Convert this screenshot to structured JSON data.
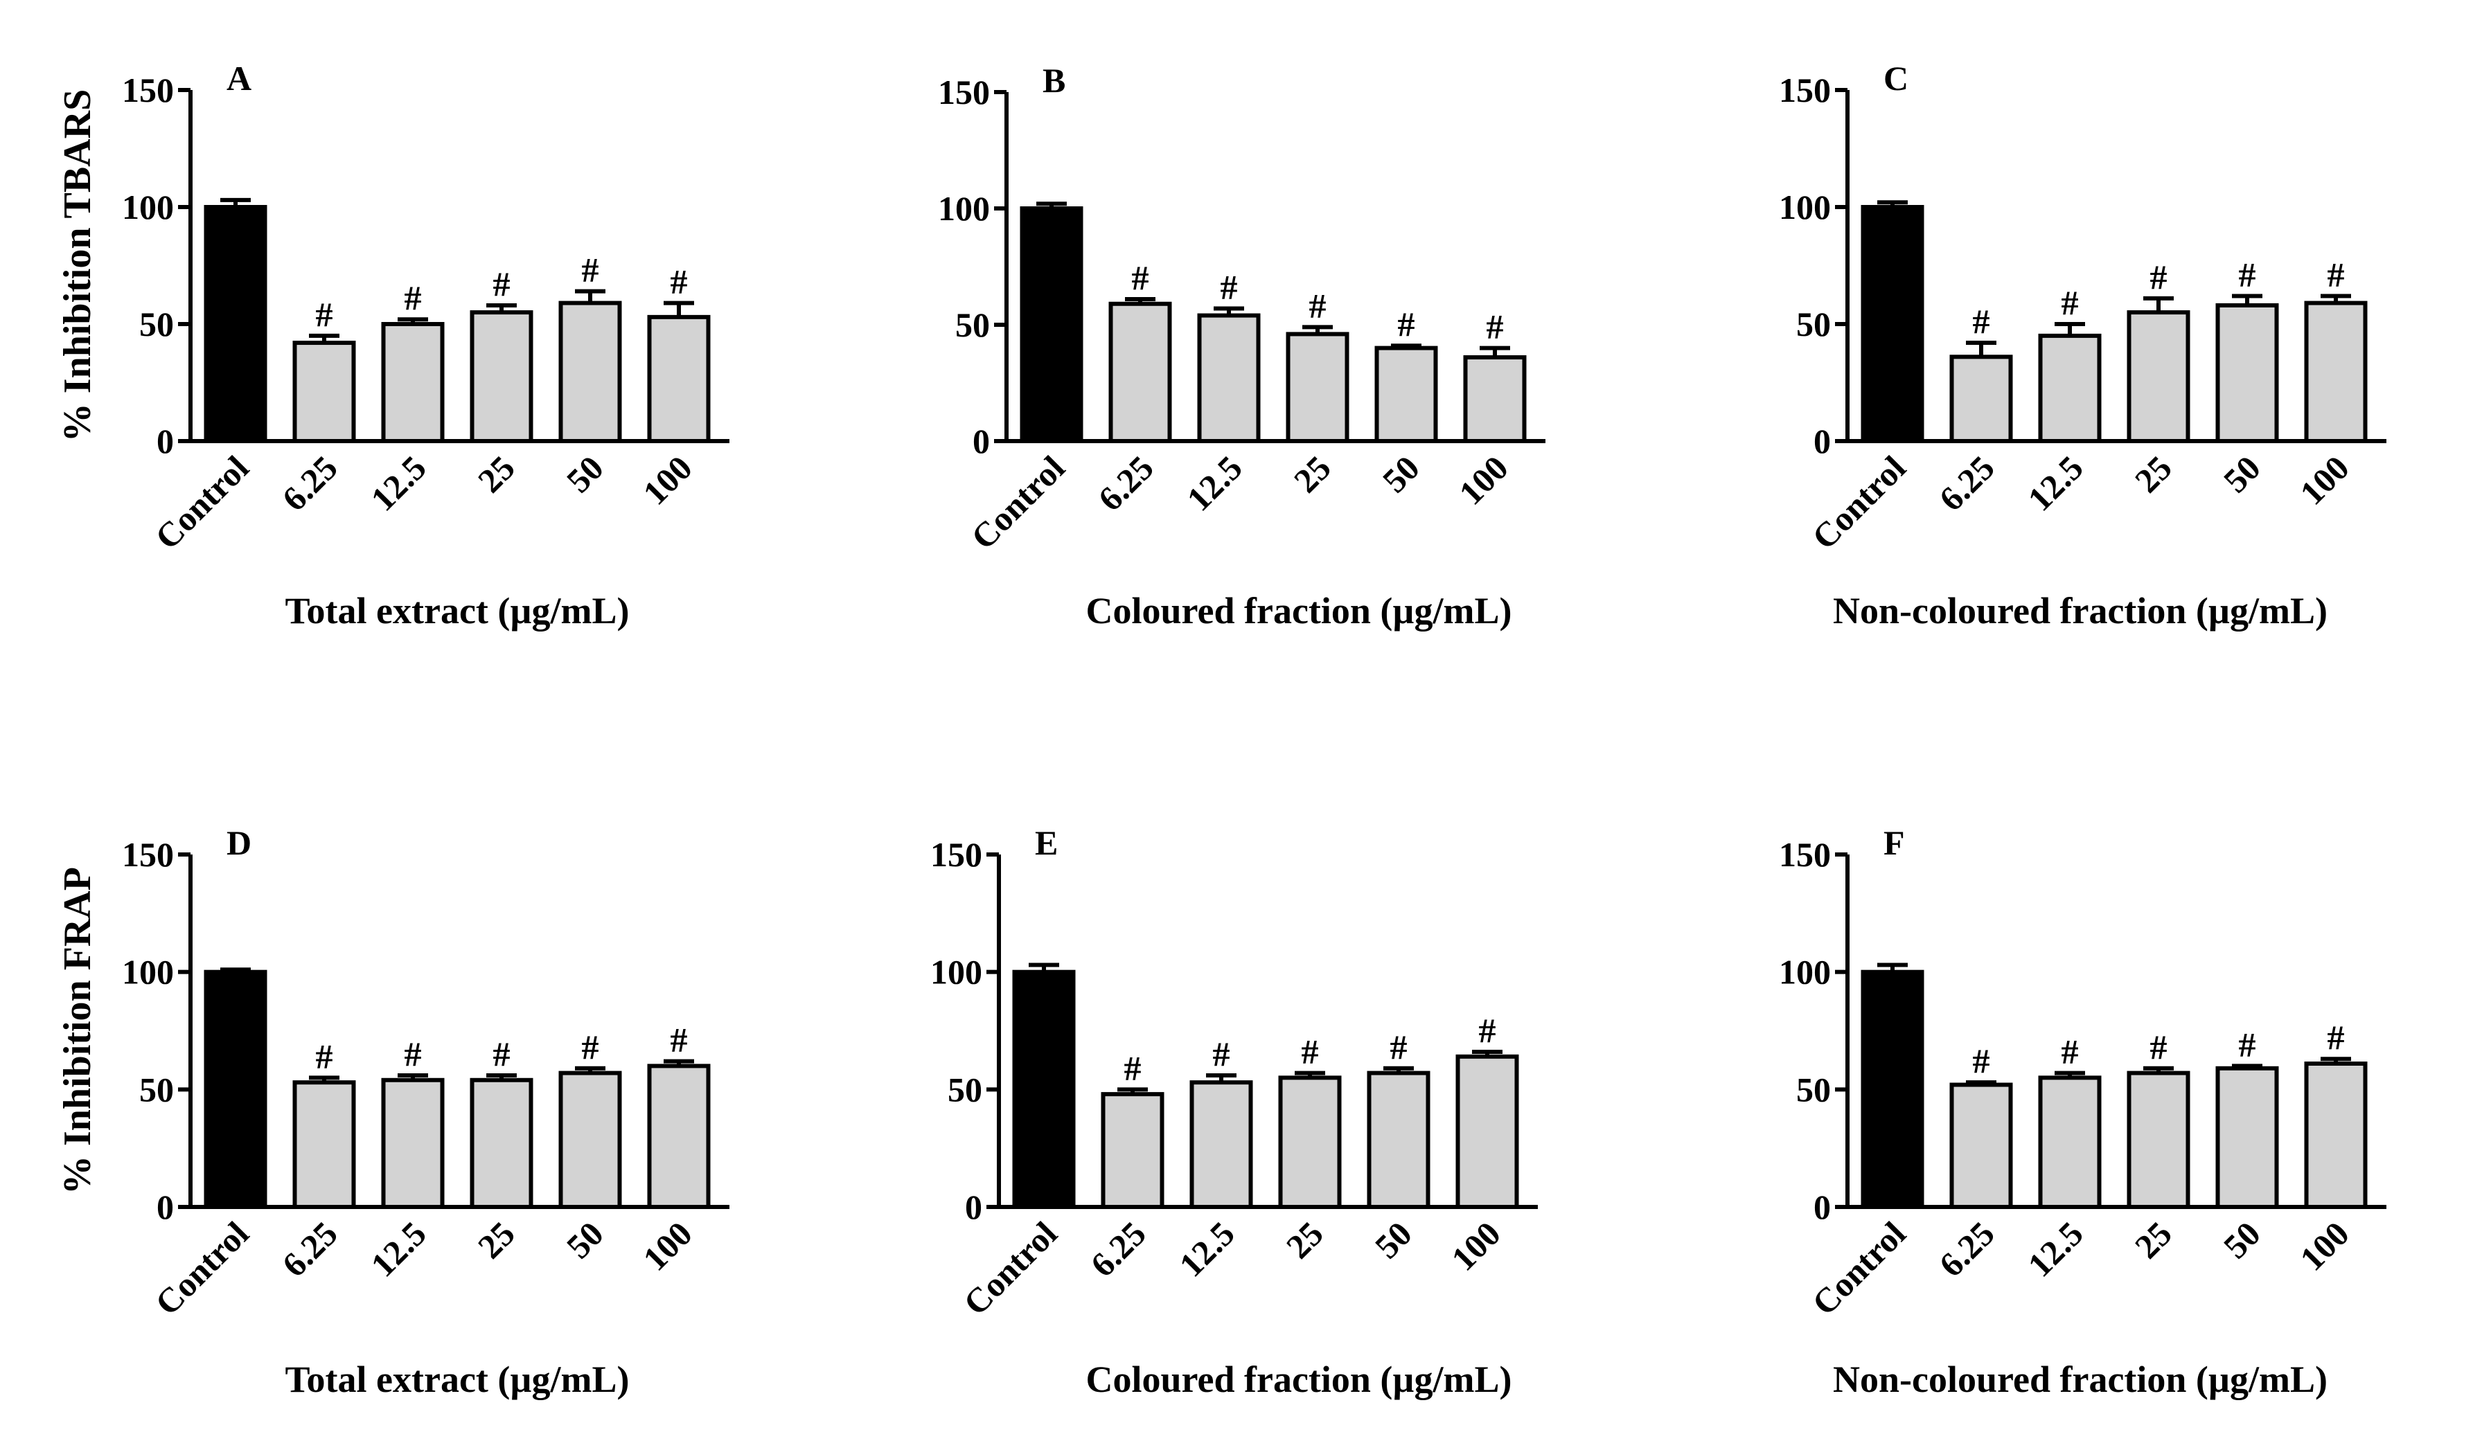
{
  "colors": {
    "control_bar": "#000000",
    "treatment_bar": "#d3d3d3",
    "axis": "#000000"
  },
  "chart_data": [
    {
      "type": "bar",
      "panel": "A",
      "categories": [
        "Control",
        "6.25",
        "12.5",
        "25",
        "50",
        "100"
      ],
      "values": [
        100,
        42,
        50,
        55,
        59,
        53
      ],
      "errors": [
        3,
        3,
        2,
        3,
        5,
        6
      ],
      "significance": [
        "",
        "#",
        "#",
        "#",
        "#",
        "#"
      ],
      "xlabel": "Total extract (µg/mL)",
      "ylabel": "% Inhibition TBARS",
      "ylim": [
        0,
        150
      ],
      "yticks": [
        "0",
        "50",
        "100",
        "150"
      ]
    },
    {
      "type": "bar",
      "panel": "B",
      "categories": [
        "Control",
        "6.25",
        "12.5",
        "25",
        "50",
        "100"
      ],
      "values": [
        100,
        59,
        54,
        46,
        40,
        36
      ],
      "errors": [
        2,
        2,
        3,
        3,
        1,
        4
      ],
      "significance": [
        "",
        "#",
        "#",
        "#",
        "#",
        "#"
      ],
      "xlabel": "Coloured fraction (µg/mL)",
      "ylabel": "",
      "ylim": [
        0,
        150
      ],
      "yticks": [
        "0",
        "50",
        "100",
        "150"
      ]
    },
    {
      "type": "bar",
      "panel": "C",
      "categories": [
        "Control",
        "6.25",
        "12.5",
        "25",
        "50",
        "100"
      ],
      "values": [
        100,
        36,
        45,
        55,
        58,
        59
      ],
      "errors": [
        2,
        6,
        5,
        6,
        4,
        3
      ],
      "significance": [
        "",
        "#",
        "#",
        "#",
        "#",
        "#"
      ],
      "xlabel": "Non-coloured fraction (µg/mL)",
      "ylabel": "",
      "ylim": [
        0,
        150
      ],
      "yticks": [
        "0",
        "50",
        "100",
        "150"
      ]
    },
    {
      "type": "bar",
      "panel": "D",
      "categories": [
        "Control",
        "6.25",
        "12.5",
        "25",
        "50",
        "100"
      ],
      "values": [
        100,
        53,
        54,
        54,
        57,
        60
      ],
      "errors": [
        1,
        2,
        2,
        2,
        2,
        2
      ],
      "significance": [
        "",
        "#",
        "#",
        "#",
        "#",
        "#"
      ],
      "xlabel": "Total extract (µg/mL)",
      "ylabel": "% Inhibition FRAP",
      "ylim": [
        0,
        150
      ],
      "yticks": [
        "0",
        "50",
        "100",
        "150"
      ]
    },
    {
      "type": "bar",
      "panel": "E",
      "categories": [
        "Control",
        "6.25",
        "12.5",
        "25",
        "50",
        "100"
      ],
      "values": [
        100,
        48,
        53,
        55,
        57,
        64
      ],
      "errors": [
        3,
        2,
        3,
        2,
        2,
        2
      ],
      "significance": [
        "",
        "#",
        "#",
        "#",
        "#",
        "#"
      ],
      "xlabel": "Coloured fraction (µg/mL)",
      "ylabel": "",
      "ylim": [
        0,
        150
      ],
      "yticks": [
        "0",
        "50",
        "100",
        "150"
      ]
    },
    {
      "type": "bar",
      "panel": "F",
      "categories": [
        "Control",
        "6.25",
        "12.5",
        "25",
        "50",
        "100"
      ],
      "values": [
        100,
        52,
        55,
        57,
        59,
        61
      ],
      "errors": [
        3,
        1,
        2,
        2,
        1,
        2
      ],
      "significance": [
        "",
        "#",
        "#",
        "#",
        "#",
        "#"
      ],
      "xlabel": "Non-coloured fraction (µg/mL)",
      "ylabel": "",
      "ylim": [
        0,
        150
      ],
      "yticks": [
        "0",
        "50",
        "100",
        "150"
      ]
    }
  ]
}
